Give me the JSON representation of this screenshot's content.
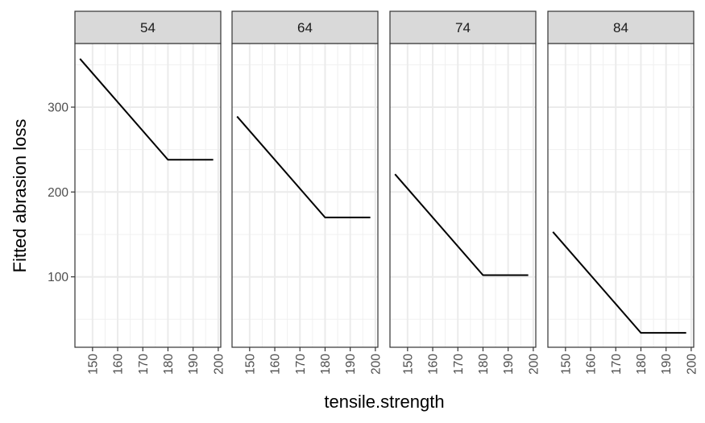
{
  "chart_data": {
    "type": "line",
    "xlabel": "tensile.strength",
    "ylabel": "Fitted abrasion loss",
    "xlim": [
      143,
      201
    ],
    "ylim": [
      17,
      375
    ],
    "x_ticks": [
      150,
      160,
      170,
      180,
      190,
      200
    ],
    "y_ticks": [
      100,
      200,
      300
    ],
    "grid": true,
    "facets": [
      {
        "label": "54",
        "series": [
          {
            "x": [
              145,
              180,
              198
            ],
            "y": [
              357,
              238,
              238
            ]
          }
        ]
      },
      {
        "label": "64",
        "series": [
          {
            "x": [
              145,
              180,
              198
            ],
            "y": [
              289,
              170,
              170
            ]
          }
        ]
      },
      {
        "label": "74",
        "series": [
          {
            "x": [
              145,
              180,
              198
            ],
            "y": [
              221,
              102,
              102
            ]
          }
        ]
      },
      {
        "label": "84",
        "series": [
          {
            "x": [
              145,
              180,
              198
            ],
            "y": [
              153,
              34,
              34
            ]
          }
        ]
      }
    ]
  }
}
